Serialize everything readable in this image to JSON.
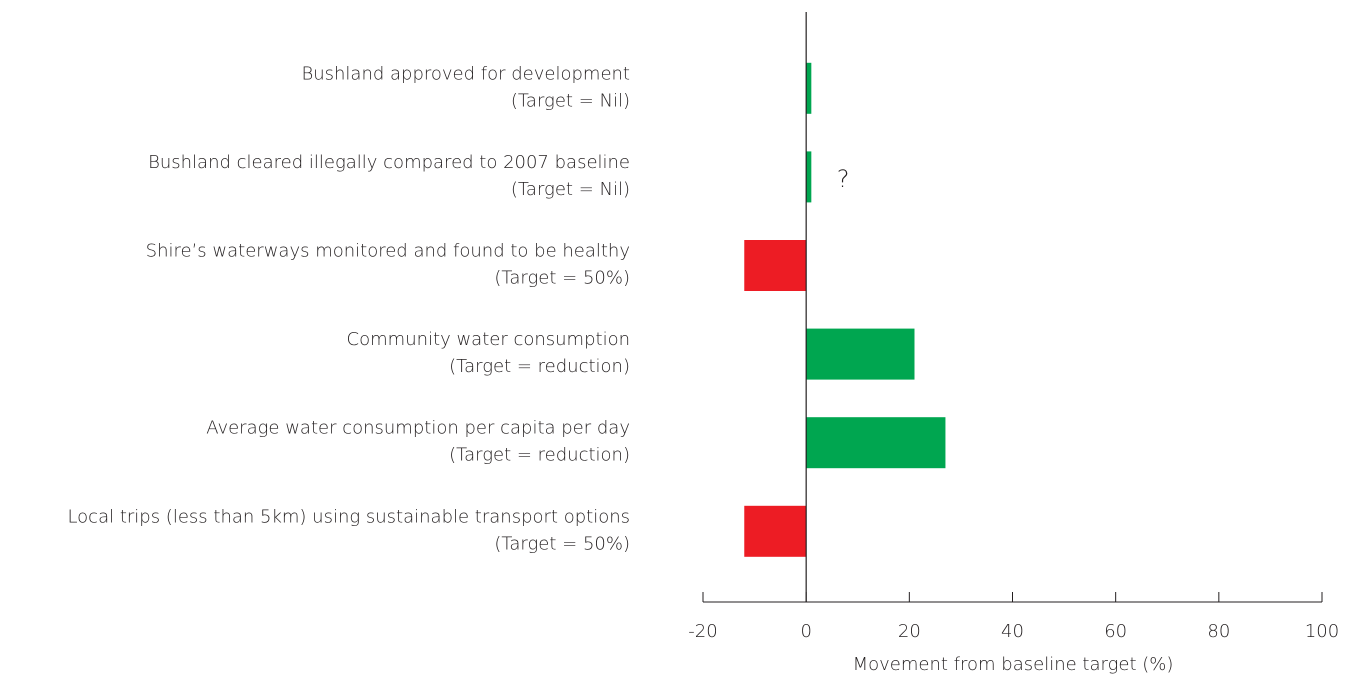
{
  "chart_data": {
    "type": "barh",
    "categories": [
      "Bushland approved for development",
      "Bushland cleared illegally compared to 2007 baseline",
      "Shire’s waterways monitored and found to be healthy",
      "Community water consumption",
      "Average water consumption per capita per day",
      "Local trips (less than 5km) using sustainable transport options"
    ],
    "targets": [
      "(Target = Nil)",
      "(Target = Nil)",
      "(Target = 50%)",
      "(Target = reduction)",
      "(Target = reduction)",
      "(Target = 50%)"
    ],
    "values": [
      1,
      1,
      -12,
      21,
      27,
      -12
    ],
    "colors": [
      "#00a650",
      "#00a650",
      "#ed1c24",
      "#00a650",
      "#00a650",
      "#ed1c24"
    ],
    "annotations": [
      {
        "text": "?"
      }
    ],
    "xlabel": "Movement from baseline target (%)",
    "xlim": [
      -20,
      100
    ],
    "xticks": [
      -20,
      0,
      20,
      40,
      60,
      80,
      100
    ]
  }
}
